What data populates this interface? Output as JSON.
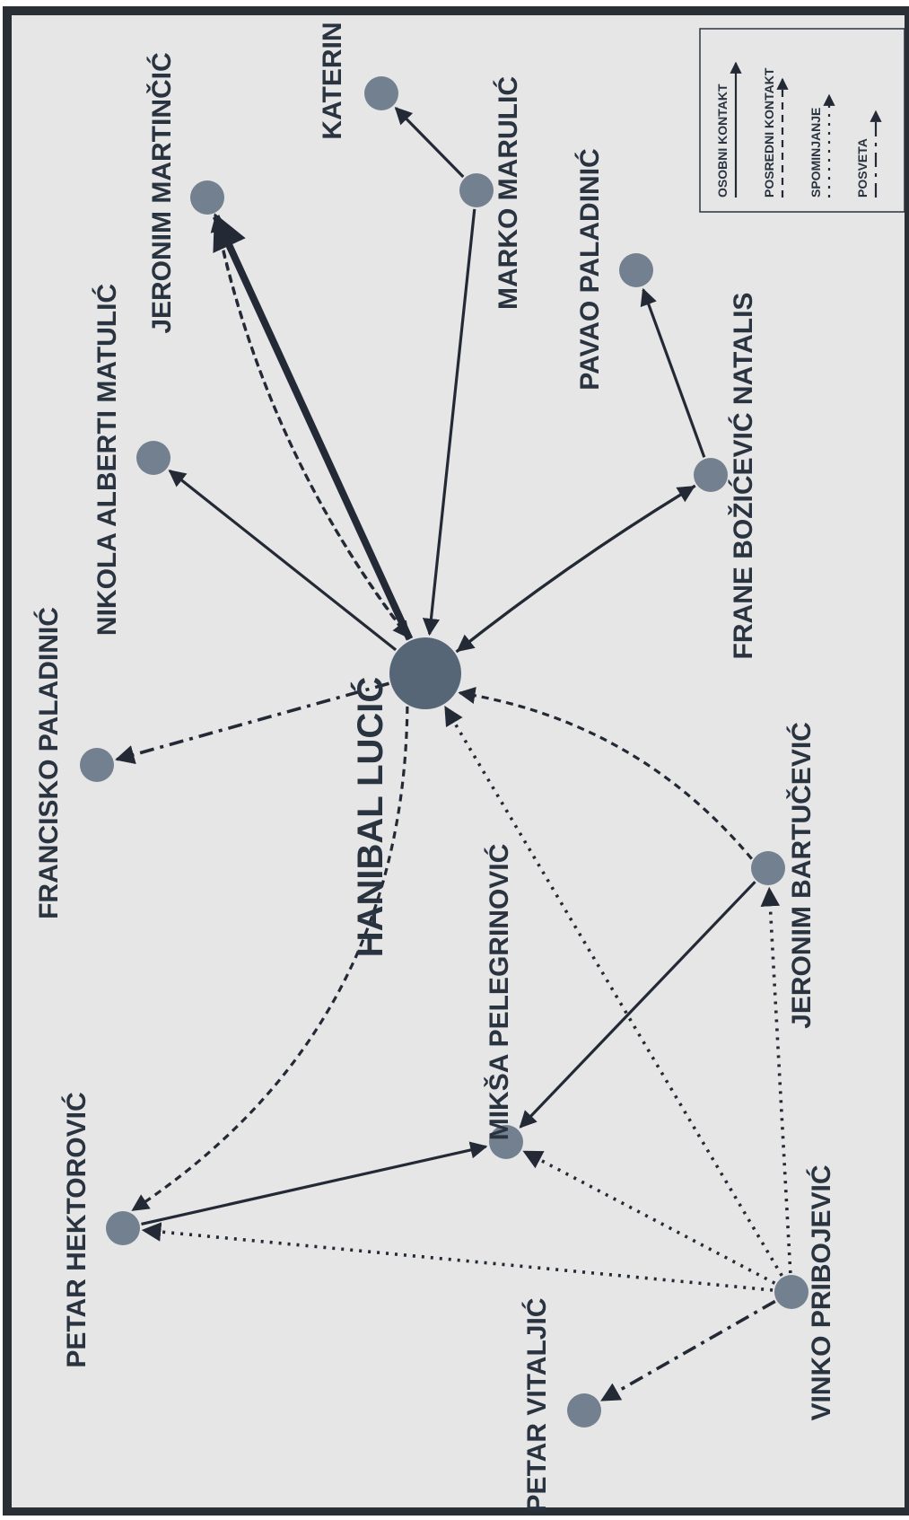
{
  "nodes": [
    {
      "id": "hanibal",
      "label": "HANIBAL LUCIĆ",
      "main": true
    },
    {
      "id": "katerin",
      "label": "KATERIN"
    },
    {
      "id": "marulic",
      "label": "MARKO MARULIĆ"
    },
    {
      "id": "martincic",
      "label": "JERONIM MARTINČIĆ"
    },
    {
      "id": "matulic",
      "label": "NIKOLA ALBERTI MATULIĆ"
    },
    {
      "id": "fpaladinic",
      "label": "FRANCISKO PALADINIĆ"
    },
    {
      "id": "ppaladinic",
      "label": "PAVAO PALADINIĆ"
    },
    {
      "id": "natalis",
      "label": "FRANE BOŽIĆEVIĆ NATALIS"
    },
    {
      "id": "bartucevic",
      "label": "JERONIM BARTUČEVIĆ"
    },
    {
      "id": "pelegrinovic",
      "label": "MIKŠA PELEGRINOVIĆ"
    },
    {
      "id": "hektorovic",
      "label": "PETAR HEKTOROVIĆ"
    },
    {
      "id": "vitaljic",
      "label": "PETAR VITALJIĆ"
    },
    {
      "id": "pribojevic",
      "label": "VINKO PRIBOJEVIĆ"
    }
  ],
  "edges": [
    {
      "from": "marulic",
      "to": "katerin",
      "type": "osobni"
    },
    {
      "from": "marulic",
      "to": "hanibal",
      "type": "osobni"
    },
    {
      "from": "hanibal",
      "to": "martincic",
      "type": "osobni",
      "weight": "strong"
    },
    {
      "from": "hanibal",
      "to": "martincic",
      "type": "posredni"
    },
    {
      "from": "martincic",
      "to": "hanibal",
      "type": "posredni"
    },
    {
      "from": "hanibal",
      "to": "matulic",
      "type": "osobni"
    },
    {
      "from": "hanibal",
      "to": "fpaladinic",
      "type": "posveta"
    },
    {
      "from": "natalis",
      "to": "ppaladinic",
      "type": "osobni"
    },
    {
      "from": "hanibal",
      "to": "natalis",
      "type": "osobni"
    },
    {
      "from": "natalis",
      "to": "hanibal",
      "type": "osobni"
    },
    {
      "from": "bartucevic",
      "to": "hanibal",
      "type": "posredni"
    },
    {
      "from": "hanibal",
      "to": "hektorovic",
      "type": "posredni"
    },
    {
      "from": "bartucevic",
      "to": "pelegrinovic",
      "type": "osobni"
    },
    {
      "from": "hektorovic",
      "to": "pelegrinovic",
      "type": "osobni"
    },
    {
      "from": "pribojevic",
      "to": "hanibal",
      "type": "spominjanje"
    },
    {
      "from": "pribojevic",
      "to": "bartucevic",
      "type": "spominjanje"
    },
    {
      "from": "pribojevic",
      "to": "pelegrinovic",
      "type": "spominjanje"
    },
    {
      "from": "pribojevic",
      "to": "hektorovic",
      "type": "spominjanje"
    },
    {
      "from": "pribojevic",
      "to": "vitaljic",
      "type": "posveta"
    }
  ],
  "legend": [
    {
      "type": "osobni",
      "label": "OSOBNI KONTAKT"
    },
    {
      "type": "posredni",
      "label": "POSREDNI KONTAKT"
    },
    {
      "type": "spominjanje",
      "label": "SPOMINJANJE"
    },
    {
      "type": "posveta",
      "label": "POSVETA"
    }
  ],
  "colors": {
    "background": "#e6e6e6",
    "frame": "#2a2f36",
    "edge": "#232a36",
    "node": "#73808f",
    "main_node": "#566677",
    "text": "#2a3340"
  }
}
